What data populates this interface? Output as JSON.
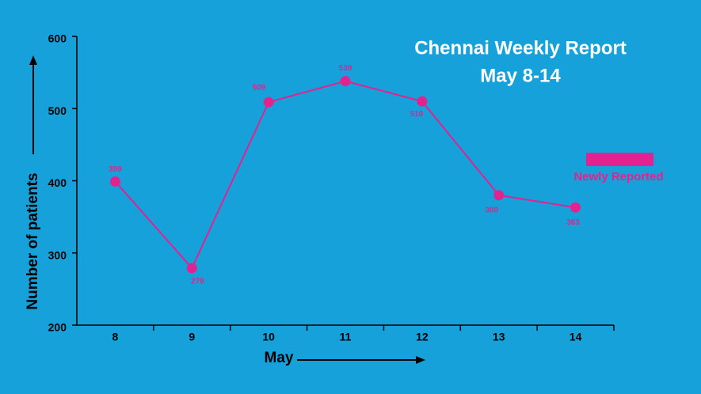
{
  "chart_data": {
    "type": "line",
    "title": "Chennai Weekly Report",
    "subtitle": "May 8-14",
    "x_label": "May",
    "y_label": "Number of patients",
    "categories": [
      "8",
      "9",
      "10",
      "11",
      "12",
      "13",
      "14"
    ],
    "series": [
      {
        "name": "Newly Reported",
        "color": "#e3228f",
        "values": [
          399,
          279,
          509,
          538,
          510,
          380,
          363
        ]
      }
    ],
    "ylim": [
      200,
      600
    ],
    "yticks": [
      200,
      300,
      400,
      500,
      600
    ],
    "legend": "right"
  }
}
